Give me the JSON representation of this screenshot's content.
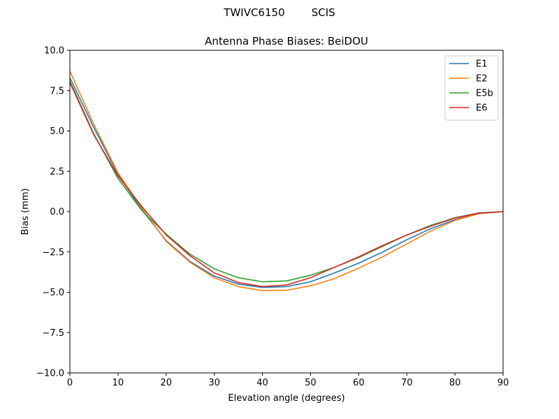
{
  "suptitle": "TWIVC6150        SCIS",
  "chart_data": {
    "type": "line",
    "title": "Antenna Phase Biases: BeiDOU",
    "xlabel": "Elevation angle (degrees)",
    "ylabel": "Bias (mm)",
    "xlim": [
      0,
      90
    ],
    "ylim": [
      -10,
      10
    ],
    "xticks": [
      0,
      10,
      20,
      30,
      40,
      50,
      60,
      70,
      80,
      90
    ],
    "yticks": [
      -10.0,
      -7.5,
      -5.0,
      -2.5,
      0.0,
      2.5,
      5.0,
      7.5,
      10.0
    ],
    "grid": false,
    "legend_position": "top-right",
    "x": [
      0,
      5,
      10,
      15,
      20,
      25,
      30,
      35,
      40,
      45,
      50,
      55,
      60,
      65,
      70,
      75,
      80,
      85,
      90
    ],
    "series": [
      {
        "name": "E1",
        "color": "#1f77b4",
        "values": [
          8.3,
          5.2,
          2.3,
          0.1,
          -1.8,
          -3.1,
          -4.0,
          -4.5,
          -4.7,
          -4.65,
          -4.35,
          -3.8,
          -3.2,
          -2.5,
          -1.75,
          -1.05,
          -0.5,
          -0.12,
          0.0
        ]
      },
      {
        "name": "E2",
        "color": "#ff7f0e",
        "values": [
          8.7,
          5.4,
          2.4,
          0.2,
          -1.85,
          -3.15,
          -4.1,
          -4.65,
          -4.9,
          -4.88,
          -4.6,
          -4.15,
          -3.5,
          -2.8,
          -2.0,
          -1.2,
          -0.55,
          -0.12,
          0.0
        ]
      },
      {
        "name": "E5b",
        "color": "#2ca02c",
        "values": [
          8.1,
          4.8,
          2.05,
          0.05,
          -1.4,
          -2.65,
          -3.55,
          -4.1,
          -4.35,
          -4.3,
          -3.95,
          -3.45,
          -2.85,
          -2.15,
          -1.45,
          -0.85,
          -0.38,
          -0.08,
          0.0
        ]
      },
      {
        "name": "E6",
        "color": "#d62728",
        "values": [
          8.0,
          4.75,
          2.2,
          0.3,
          -1.45,
          -2.75,
          -3.8,
          -4.4,
          -4.65,
          -4.55,
          -4.1,
          -3.45,
          -2.8,
          -2.1,
          -1.45,
          -0.9,
          -0.4,
          -0.1,
          0.0
        ]
      }
    ]
  }
}
